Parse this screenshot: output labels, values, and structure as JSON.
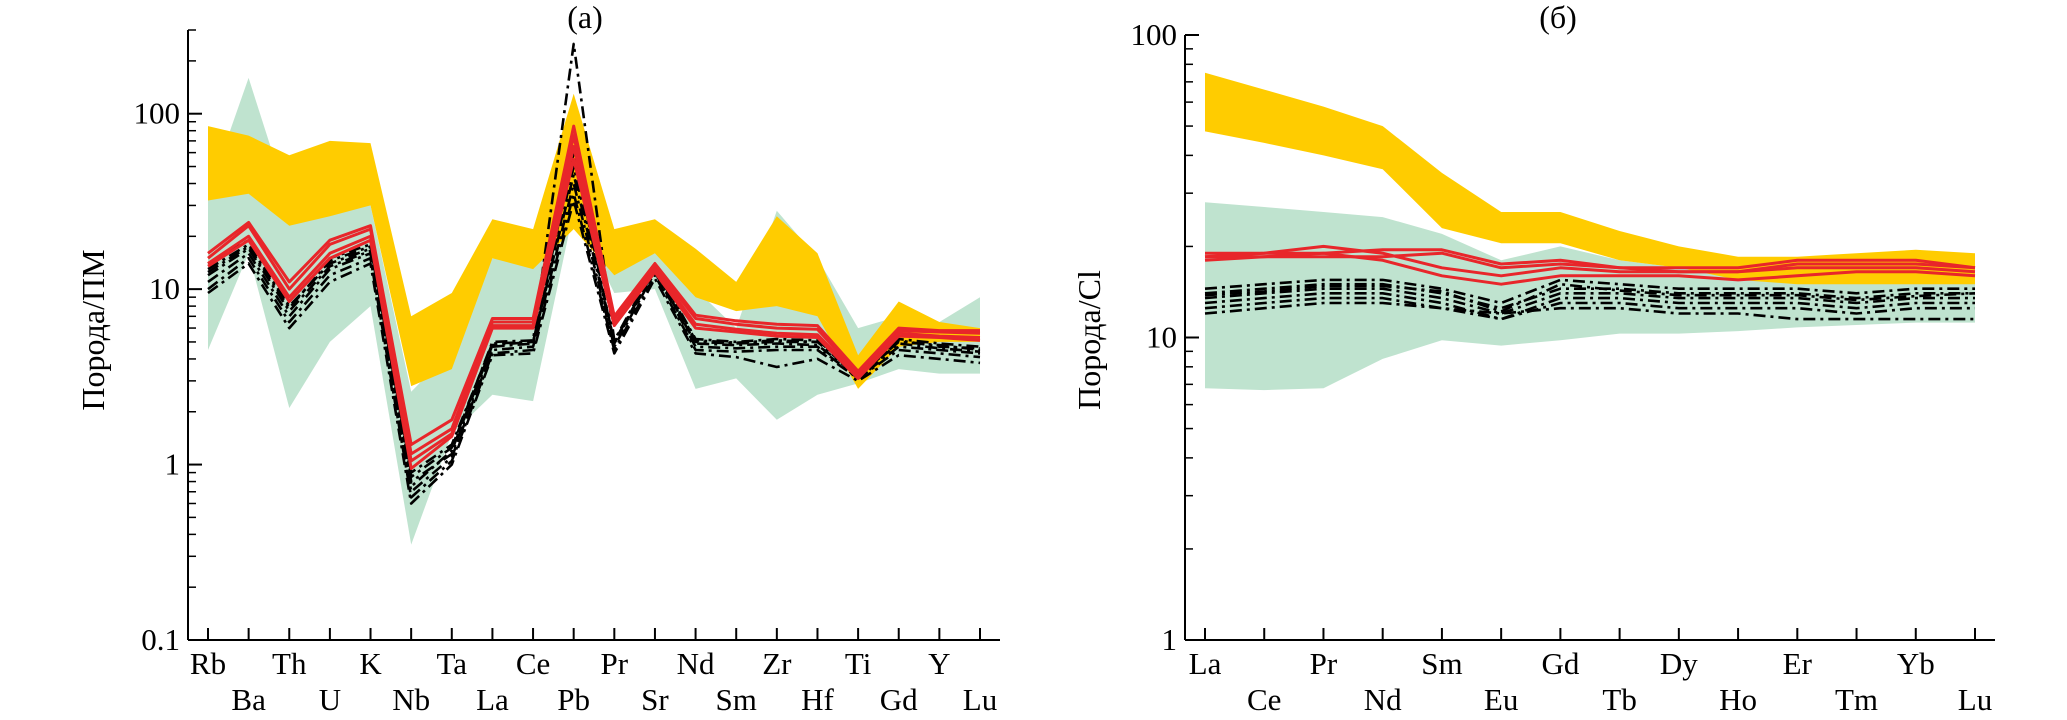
{
  "chart_data": [
    {
      "type": "line",
      "title": "(а)",
      "xlabel": "",
      "ylabel": "Порода/ПМ",
      "yscale": "log",
      "ylim": [
        0.1,
        300
      ],
      "yticks": [
        {
          "value": 0.1,
          "label": "0.1"
        },
        {
          "value": 1,
          "label": "1"
        },
        {
          "value": 10,
          "label": "10"
        },
        {
          "value": 100,
          "label": "100"
        }
      ],
      "categories": [
        "Rb",
        "Ba",
        "Th",
        "U",
        "K",
        "Nb",
        "Ta",
        "La",
        "Ce",
        "Pb",
        "Pr",
        "Sr",
        "Nd",
        "Sm",
        "Zr",
        "Hf",
        "Ti",
        "Gd",
        "Y",
        "Lu"
      ],
      "colors": {
        "yellow": "#FFCC00",
        "green": "#BFE3CF",
        "red": "#E8262A",
        "black": "#000000"
      },
      "bands": [
        {
          "fill": "green",
          "upper": [
            35,
            160,
            30,
            35,
            30,
            2.6,
            4.5,
            15,
            15,
            40,
            16,
            20,
            10,
            6,
            28,
            15,
            6,
            7,
            6.5,
            9
          ],
          "lower": [
            4.5,
            16,
            2.1,
            5,
            8,
            0.35,
            1.5,
            2.5,
            2.3,
            28,
            9.5,
            10,
            2.7,
            3.1,
            1.8,
            2.5,
            2.9,
            3.5,
            3.3,
            3.3
          ]
        },
        {
          "fill": "yellow",
          "upper": [
            85,
            75,
            58,
            70,
            68,
            7,
            9.5,
            25,
            22,
            130,
            22,
            25,
            17,
            11,
            26,
            16,
            4.2,
            8.5,
            6.5,
            6
          ],
          "lower": [
            32,
            35,
            23,
            26,
            30,
            2.8,
            3.5,
            15,
            13,
            22,
            12,
            16,
            9,
            7.5,
            8,
            7,
            2.7,
            4.7,
            5,
            5
          ]
        }
      ],
      "series": [
        {
          "style": "red-solid",
          "values": [
            15,
            23,
            10,
            18,
            22,
            1.15,
            1.6,
            6.5,
            6.5,
            75,
            6.8,
            13.5,
            6.8,
            6.3,
            6,
            5.9,
            3.3,
            5.8,
            5.7,
            5.6
          ]
        },
        {
          "style": "red-solid",
          "values": [
            14,
            20,
            9,
            16,
            20,
            1.05,
            1.5,
            6.2,
            6.2,
            65,
            6.4,
            13,
            6.3,
            5.9,
            5.6,
            5.5,
            3.2,
            5.6,
            5.4,
            5.3
          ]
        },
        {
          "style": "red-solid",
          "values": [
            16,
            24,
            11,
            19,
            23,
            1.3,
            1.8,
            6.8,
            6.8,
            85,
            7,
            14,
            7.1,
            6.6,
            6.3,
            6.2,
            3.4,
            6,
            5.8,
            5.8
          ]
        },
        {
          "style": "red-solid",
          "values": [
            13.5,
            19,
            8.5,
            15,
            19,
            0.95,
            1.45,
            6,
            6,
            55,
            6.2,
            12.5,
            6,
            5.7,
            5.4,
            5.3,
            3.1,
            5.4,
            5.3,
            5.1
          ]
        },
        {
          "style": "black-dashdot",
          "values": [
            13,
            18,
            8,
            14,
            17,
            0.75,
            1.2,
            4.8,
            5,
            45,
            5,
            13,
            5,
            4.9,
            5,
            5,
            3.2,
            5,
            4.8,
            4.5
          ]
        },
        {
          "style": "black-dashdot",
          "values": [
            11,
            16,
            7,
            13,
            16,
            0.7,
            1.1,
            4.5,
            4.7,
            40,
            4.7,
            12.5,
            4.7,
            4.6,
            4.7,
            4.7,
            3.1,
            4.7,
            4.5,
            4.3
          ]
        },
        {
          "style": "black-dashdot",
          "values": [
            10,
            15,
            6.5,
            12,
            15,
            0.65,
            1.05,
            4.3,
            4.5,
            35,
            4.5,
            12,
            4.5,
            4.4,
            4.5,
            4.5,
            3.1,
            4.5,
            4.3,
            4.1
          ]
        },
        {
          "style": "black-dashdot",
          "values": [
            12,
            17,
            7.5,
            13.5,
            16.5,
            0.8,
            1.15,
            4.7,
            4.9,
            60,
            4.9,
            12.8,
            4.9,
            4.8,
            4.9,
            4.8,
            3.2,
            4.9,
            4.6,
            4.4
          ]
        },
        {
          "style": "black-dashdot",
          "values": [
            14,
            19,
            8.5,
            15,
            18,
            0.85,
            1.25,
            5,
            5.1,
            250,
            5.1,
            13.5,
            5.2,
            5,
            5.2,
            5.1,
            3.3,
            5.2,
            4.9,
            4.7
          ]
        },
        {
          "style": "black-dashdot",
          "values": [
            9.5,
            14,
            6,
            11,
            14,
            0.6,
            1,
            4.2,
            4.3,
            32,
            4.3,
            11.5,
            4.3,
            4.1,
            3.6,
            4,
            3,
            4.2,
            4,
            3.8
          ]
        },
        {
          "style": "black-dashdot",
          "values": [
            12.5,
            17.5,
            7.8,
            14.5,
            17.5,
            0.9,
            1.3,
            4.9,
            5,
            50,
            5,
            13.2,
            5.1,
            4.95,
            5.1,
            5,
            3.25,
            5.1,
            4.7,
            4.6
          ]
        }
      ]
    },
    {
      "type": "line",
      "title": "(б)",
      "xlabel": "",
      "ylabel": "Порода/Cl",
      "yscale": "log",
      "ylim": [
        1,
        100
      ],
      "yticks": [
        {
          "value": 1,
          "label": "1"
        },
        {
          "value": 10,
          "label": "10"
        },
        {
          "value": 100,
          "label": "100"
        }
      ],
      "categories": [
        "La",
        "Ce",
        "Pr",
        "Nd",
        "Sm",
        "Eu",
        "Gd",
        "Tb",
        "Dy",
        "Ho",
        "Er",
        "Tm",
        "Yb",
        "Lu"
      ],
      "colors": {
        "yellow": "#FFCC00",
        "green": "#BFE3CF",
        "red": "#E8262A",
        "black": "#000000"
      },
      "bands": [
        {
          "fill": "green",
          "upper": [
            28,
            27,
            26,
            25,
            22,
            18,
            20,
            18,
            17,
            16,
            16,
            16,
            16,
            16
          ],
          "lower": [
            6.8,
            6.7,
            6.8,
            8.5,
            9.8,
            9.4,
            9.8,
            10.3,
            10.3,
            10.5,
            10.8,
            11,
            11.2,
            11.2
          ]
        },
        {
          "fill": "yellow",
          "upper": [
            75,
            66,
            58,
            50,
            35,
            26,
            26,
            22.5,
            20,
            18.5,
            18.5,
            19,
            19.5,
            19
          ],
          "lower": [
            48,
            44,
            40,
            36,
            23,
            20.5,
            20.5,
            18,
            17,
            15.5,
            15,
            15,
            15,
            15
          ]
        }
      ],
      "series": [
        {
          "style": "red-solid",
          "values": [
            19,
            19,
            19,
            19.5,
            19.5,
            17.5,
            18,
            17,
            17,
            17,
            18,
            18,
            18,
            17
          ]
        },
        {
          "style": "red-solid",
          "values": [
            18.5,
            19,
            20,
            19,
            17,
            16,
            17,
            16.5,
            16.5,
            16.5,
            17,
            17,
            17,
            16.5
          ]
        },
        {
          "style": "red-solid",
          "values": [
            18,
            18.5,
            19,
            18,
            16,
            15,
            16,
            16,
            16,
            15.5,
            16,
            16.5,
            16.5,
            16
          ]
        },
        {
          "style": "red-solid",
          "values": [
            18.5,
            18.5,
            18.5,
            18.5,
            19,
            17,
            17.5,
            17,
            16.5,
            16.5,
            17.5,
            17.5,
            17.5,
            17
          ]
        },
        {
          "style": "black-dashdot",
          "values": [
            14.5,
            15,
            15.5,
            15.5,
            14.5,
            13,
            15.5,
            15,
            14.5,
            14.5,
            14.5,
            14,
            14.5,
            14.5
          ]
        },
        {
          "style": "black-dashdot",
          "values": [
            14,
            14.5,
            15,
            15,
            14,
            12.5,
            14.5,
            14.5,
            14,
            14,
            14,
            13.5,
            14,
            14
          ]
        },
        {
          "style": "black-dashdot",
          "values": [
            13.5,
            14,
            14.5,
            14.5,
            13.5,
            12,
            14,
            14,
            13.5,
            13.5,
            13.5,
            13,
            13.5,
            13.5
          ]
        },
        {
          "style": "black-dashdot",
          "values": [
            13,
            13.5,
            14,
            14,
            13,
            11.5,
            13.5,
            13.5,
            13,
            13,
            13,
            12.5,
            13,
            13
          ]
        },
        {
          "style": "black-dashdot",
          "values": [
            12.5,
            13,
            13.5,
            13.5,
            12.5,
            11.5,
            13,
            13,
            12.5,
            12.5,
            12.5,
            12,
            12.5,
            12.5
          ]
        },
        {
          "style": "black-dashdot",
          "values": [
            12,
            12.5,
            13,
            13,
            12.5,
            12,
            12.5,
            12.5,
            12,
            12,
            11.5,
            11.5,
            11.5,
            11.5
          ]
        },
        {
          "style": "black-dashdot",
          "values": [
            13.8,
            14.2,
            14.8,
            14.8,
            14.2,
            12.2,
            15,
            14.3,
            13.8,
            13.8,
            13.8,
            13.3,
            13.7,
            14
          ]
        }
      ]
    }
  ]
}
